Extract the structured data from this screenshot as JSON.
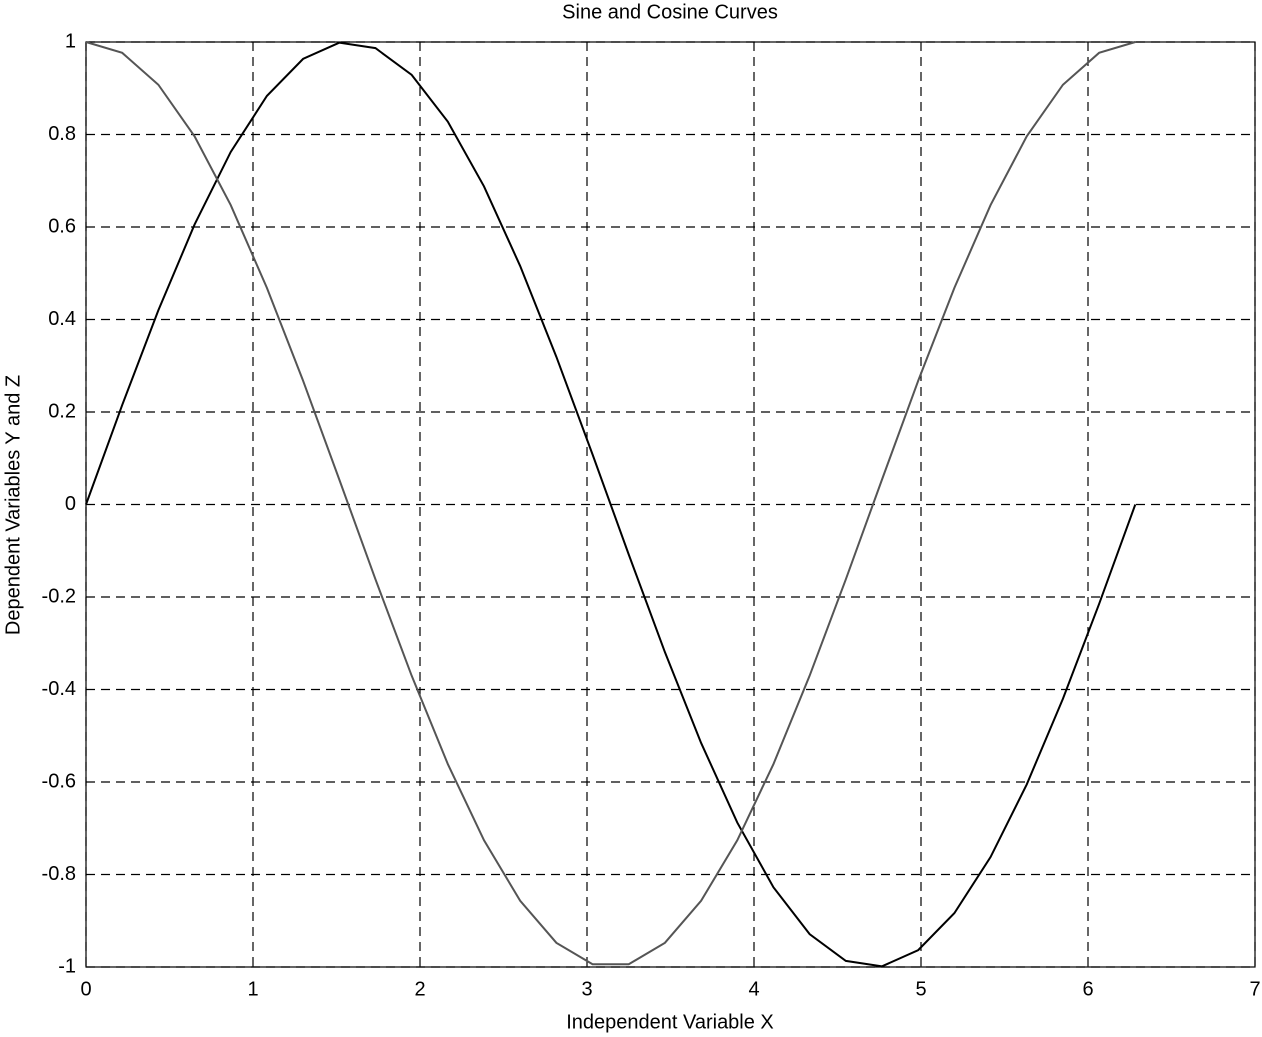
{
  "chart_data": {
    "type": "line",
    "title": "Sine and Cosine Curves",
    "x_label": "Independent Variable X",
    "y_label": "Dependent Variables Y and Z",
    "x": [
      0,
      0.2167,
      0.4333,
      0.65,
      0.8666,
      1.0833,
      1.3,
      1.5166,
      1.7333,
      1.95,
      2.1666,
      2.3833,
      2.5999,
      2.8166,
      3.0333,
      3.2499,
      3.4666,
      3.6833,
      3.8999,
      4.1166,
      4.3332,
      4.5499,
      4.7666,
      4.9832,
      5.1999,
      5.4165,
      5.6332,
      5.8499,
      6.0665,
      6.2832
    ],
    "series": [
      {
        "color": "#000000",
        "values": [
          0,
          0.215,
          0.4199,
          0.6052,
          0.7622,
          0.8835,
          0.9635,
          0.9985,
          0.9868,
          0.929,
          0.8277,
          0.6877,
          0.5156,
          0.3193,
          0.1081,
          -0.1081,
          -0.3193,
          -0.5156,
          -0.6877,
          -0.8277,
          -0.929,
          -0.9868,
          -0.9985,
          -0.9635,
          -0.8835,
          -0.7622,
          -0.6052,
          -0.4199,
          -0.215,
          0
        ]
      },
      {
        "color": "#555555",
        "values": [
          1,
          0.9766,
          0.9076,
          0.7961,
          0.6474,
          0.4684,
          0.2675,
          0.0541,
          -0.1618,
          -0.3701,
          -0.5612,
          -0.726,
          -0.8569,
          -0.9477,
          -0.9941,
          -0.9941,
          -0.9477,
          -0.8569,
          -0.726,
          -0.5612,
          -0.3701,
          -0.1618,
          0.0541,
          0.2675,
          0.4684,
          0.6474,
          0.7961,
          0.9076,
          0.9766,
          1
        ]
      }
    ],
    "xlim": [
      0,
      7
    ],
    "xticks": [
      0,
      1,
      2,
      3,
      4,
      5,
      6,
      7
    ],
    "ylim": [
      -1,
      1
    ],
    "yticks": [
      -1,
      -0.8,
      -0.6,
      -0.4,
      -0.2,
      0,
      0.2,
      0.4,
      0.6,
      0.8,
      1
    ],
    "grid": true
  }
}
